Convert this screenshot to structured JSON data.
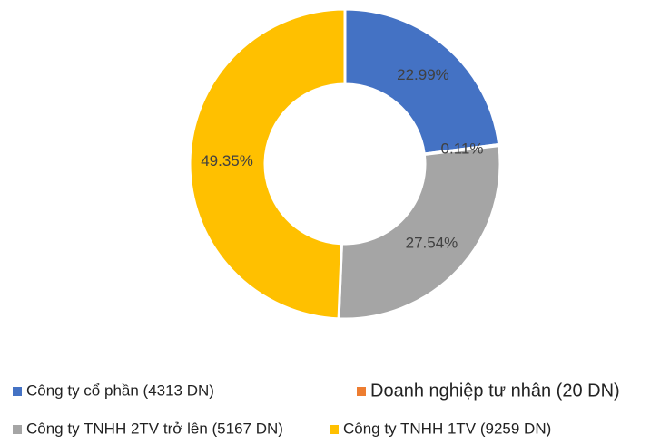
{
  "chart_data": {
    "type": "donut",
    "categories": [
      "Công ty cổ phần (4313 DN)",
      "Doanh nghiệp tư nhân (20 DN)",
      "Công ty TNHH 2TV trở lên (5167 DN)",
      "Công ty TNHH 1TV (9259 DN)"
    ],
    "values": [
      22.99,
      0.11,
      27.54,
      49.35
    ],
    "value_labels": [
      "22.99%",
      "0.11%",
      "27.54%",
      "49.35%"
    ],
    "colors": [
      "#4472c4",
      "#ed7d31",
      "#a5a5a5",
      "#ffc000"
    ],
    "legend": "bottom"
  }
}
